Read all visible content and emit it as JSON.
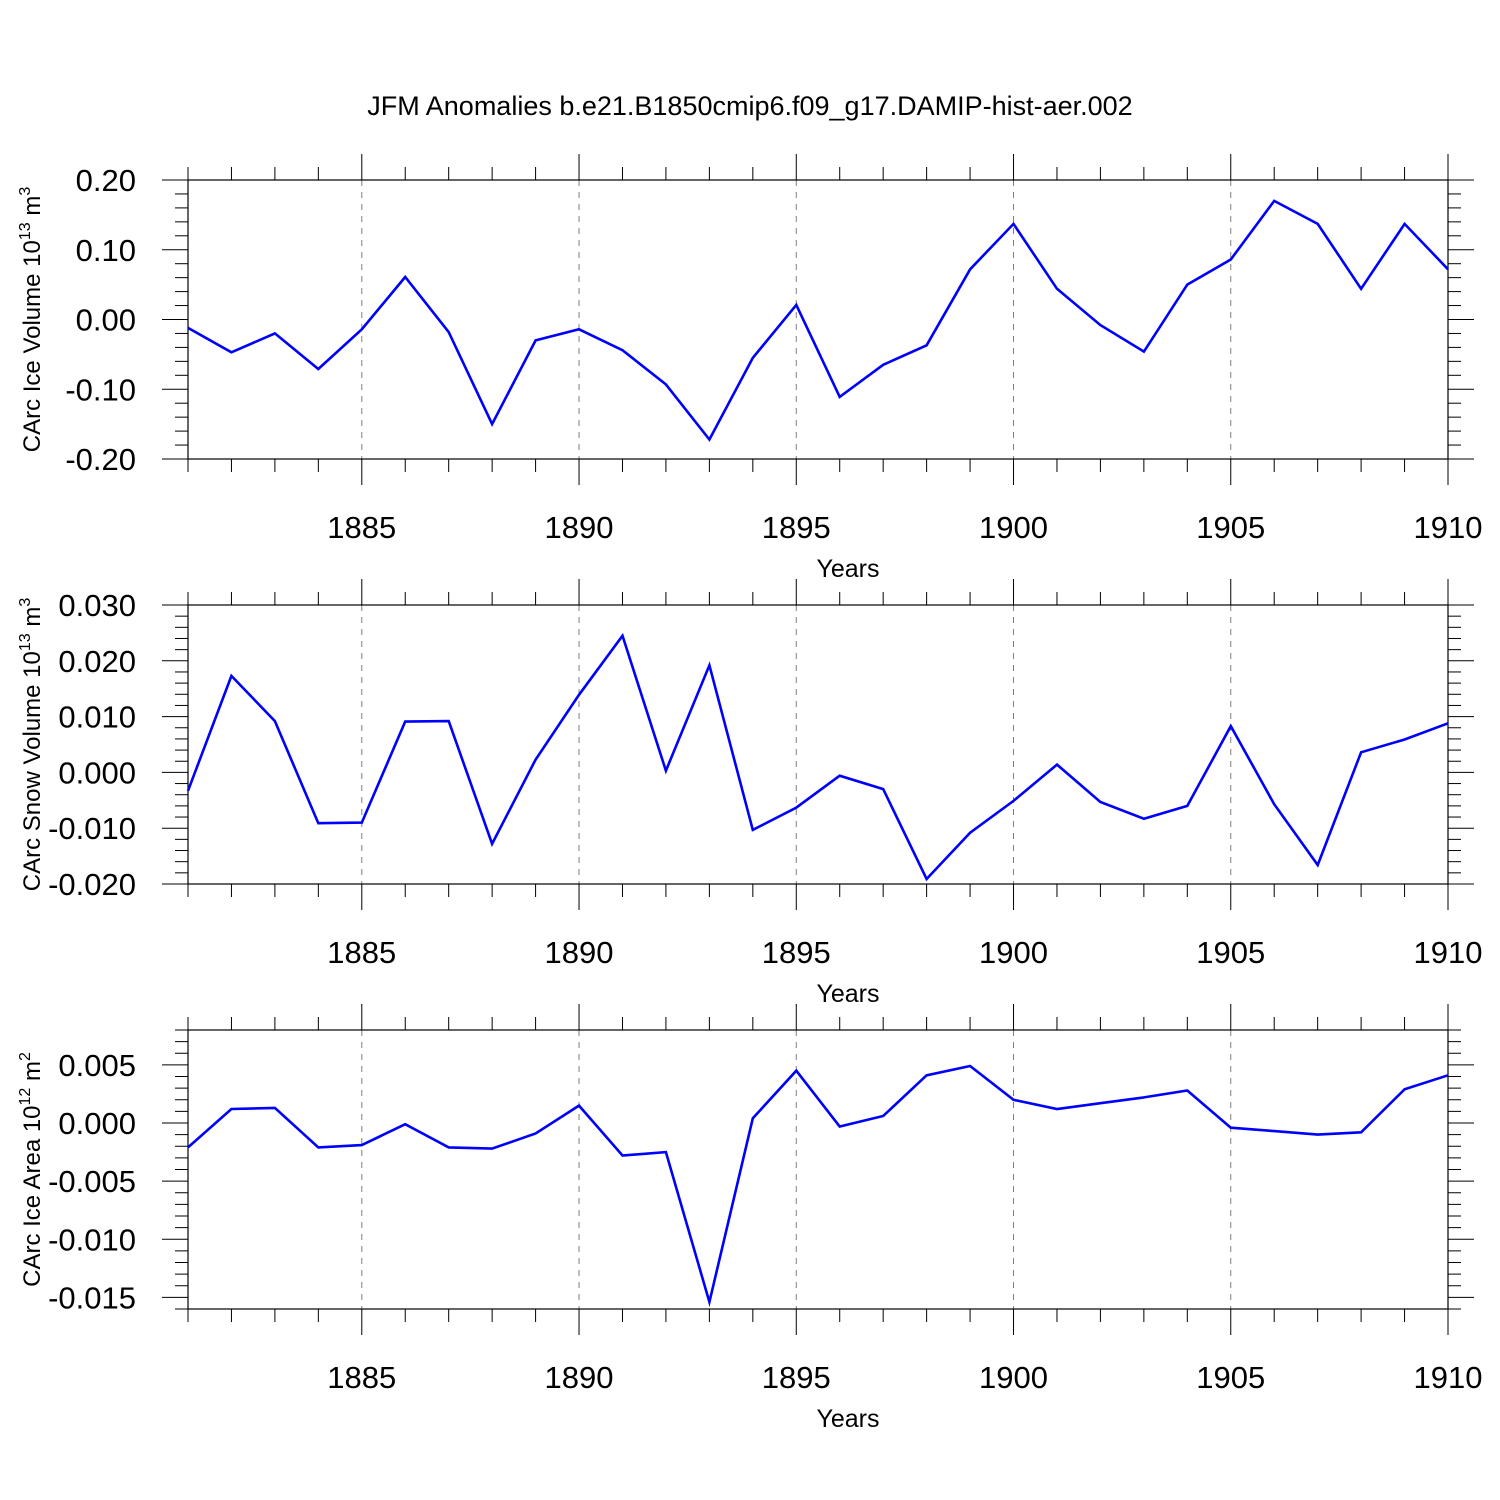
{
  "title": "JFM Anomalies b.e21.B1850cmip6.f09_g17.DAMIP-hist-aer.002",
  "series_color": "#0000ff",
  "chart_data": [
    {
      "type": "line",
      "ylabel_text": "CArc Ice Volume 10",
      "ylabel_exp": "13",
      "ylabel_unit": " m",
      "ylabel_unit_exp": "3",
      "xlabel": "Years",
      "xlim": [
        1881,
        1910
      ],
      "ylim": [
        -0.2,
        0.2
      ],
      "xticks": [
        1885,
        1890,
        1895,
        1900,
        1905,
        1910
      ],
      "xtick_labels": [
        "1885",
        "1890",
        "1895",
        "1900",
        "1905",
        "1910"
      ],
      "yticks": [
        -0.2,
        -0.1,
        0.0,
        0.1,
        0.2
      ],
      "ytick_labels": [
        "-0.20",
        "-0.10",
        "0.00",
        "0.10",
        "0.20"
      ],
      "y_minor_step": 0.02,
      "grid": "x-dashed",
      "x": [
        1881,
        1882,
        1883,
        1884,
        1885,
        1886,
        1887,
        1888,
        1889,
        1890,
        1891,
        1892,
        1893,
        1894,
        1895,
        1896,
        1897,
        1898,
        1899,
        1900,
        1901,
        1902,
        1903,
        1904,
        1905,
        1906,
        1907,
        1908,
        1909,
        1910
      ],
      "values": [
        -0.012,
        -0.047,
        -0.02,
        -0.071,
        -0.014,
        0.061,
        -0.018,
        -0.15,
        -0.03,
        -0.014,
        -0.044,
        -0.093,
        -0.172,
        -0.055,
        0.021,
        -0.111,
        -0.065,
        -0.037,
        0.072,
        0.137,
        0.044,
        -0.008,
        -0.046,
        0.05,
        0.086,
        0.17,
        0.137,
        0.044,
        0.137,
        0.072
      ]
    },
    {
      "type": "line",
      "ylabel_text": "CArc Snow Volume 10",
      "ylabel_exp": "13",
      "ylabel_unit": " m",
      "ylabel_unit_exp": "3",
      "xlabel": "Years",
      "xlim": [
        1881,
        1910
      ],
      "ylim": [
        -0.02,
        0.03
      ],
      "xticks": [
        1885,
        1890,
        1895,
        1900,
        1905,
        1910
      ],
      "xtick_labels": [
        "1885",
        "1890",
        "1895",
        "1900",
        "1905",
        "1910"
      ],
      "yticks": [
        -0.02,
        -0.01,
        0.0,
        0.01,
        0.02,
        0.03
      ],
      "ytick_labels": [
        "-0.020",
        "-0.010",
        "0.000",
        "0.010",
        "0.020",
        "0.030"
      ],
      "y_minor_step": 0.002,
      "grid": "x-dashed",
      "x": [
        1881,
        1882,
        1883,
        1884,
        1885,
        1886,
        1887,
        1888,
        1889,
        1890,
        1891,
        1892,
        1893,
        1894,
        1895,
        1896,
        1897,
        1898,
        1899,
        1900,
        1901,
        1902,
        1903,
        1904,
        1905,
        1906,
        1907,
        1908,
        1909,
        1910
      ],
      "values": [
        -0.0033,
        0.0173,
        0.0092,
        -0.0091,
        -0.009,
        0.0091,
        0.0092,
        -0.0128,
        0.0023,
        0.0139,
        0.0245,
        0.0003,
        0.0192,
        -0.0103,
        -0.0063,
        -0.0006,
        -0.003,
        -0.0191,
        -0.0108,
        -0.0051,
        0.0014,
        -0.0053,
        -0.0083,
        -0.006,
        0.0083,
        -0.0057,
        -0.0166,
        0.0036,
        0.0059,
        0.0088
      ]
    },
    {
      "type": "line",
      "ylabel_text": "CArc Ice Area 10",
      "ylabel_exp": "12",
      "ylabel_unit": " m",
      "ylabel_unit_exp": "2",
      "xlabel": "Years",
      "xlim": [
        1881,
        1910
      ],
      "ylim": [
        -0.016,
        0.008
      ],
      "xticks": [
        1885,
        1890,
        1895,
        1900,
        1905,
        1910
      ],
      "xtick_labels": [
        "1885",
        "1890",
        "1895",
        "1900",
        "1905",
        "1910"
      ],
      "yticks": [
        -0.015,
        -0.01,
        -0.005,
        0.0,
        0.005
      ],
      "ytick_labels": [
        "-0.015",
        "-0.010",
        "-0.005",
        "0.000",
        "0.005"
      ],
      "y_minor_step": 0.001,
      "grid": "x-dashed",
      "x": [
        1881,
        1882,
        1883,
        1884,
        1885,
        1886,
        1887,
        1888,
        1889,
        1890,
        1891,
        1892,
        1893,
        1894,
        1895,
        1896,
        1897,
        1898,
        1899,
        1900,
        1901,
        1902,
        1903,
        1904,
        1905,
        1906,
        1907,
        1908,
        1909,
        1910
      ],
      "values": [
        -0.0021,
        0.0012,
        0.0013,
        -0.0021,
        -0.0019,
        -0.0001,
        -0.0021,
        -0.0022,
        -0.0009,
        0.0015,
        -0.0028,
        -0.0025,
        -0.0154,
        0.0004,
        0.0045,
        -0.0003,
        0.0006,
        0.0041,
        0.0049,
        0.002,
        0.0012,
        0.0017,
        0.0022,
        0.0028,
        -0.0004,
        -0.0007,
        -0.001,
        -0.0008,
        0.0029,
        0.0041
      ]
    }
  ]
}
